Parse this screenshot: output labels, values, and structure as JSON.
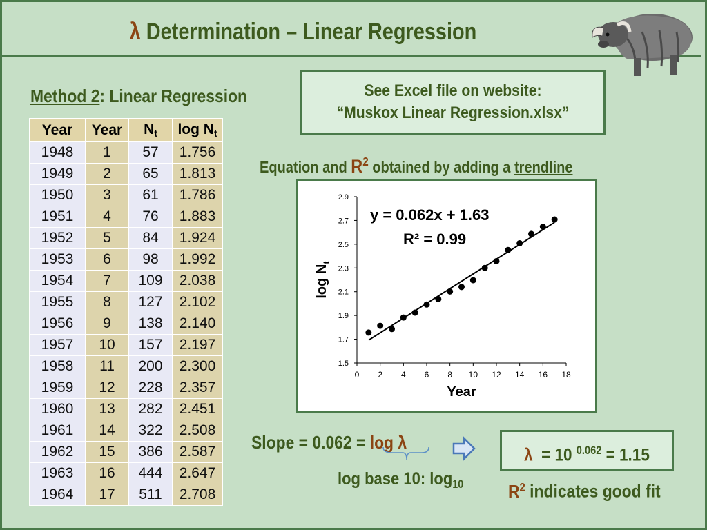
{
  "slide": {
    "title_symbol": "λ",
    "title_text": " Determination – Linear Regression",
    "method_underlined": "Method 2",
    "method_rest": ": Linear Regression",
    "excel_line1": "See Excel file on website:",
    "excel_line2": "“Muskox Linear Regression.xlsx”",
    "eq_note_pre": "Equation and ",
    "eq_note_r": "R",
    "eq_note_r_sup": "2",
    "eq_note_mid": " obtained by adding a ",
    "eq_note_trend": "trendline",
    "slope_text": "Slope = 0.062 = ",
    "slope_loglambda": "log λ",
    "logbase_text": "log base 10: log",
    "logbase_sub": "10",
    "lambda_box_sym": "λ",
    "lambda_box_pre": "  = 10 ",
    "lambda_box_exp": "0.062",
    "lambda_box_post": " = 1.15",
    "goodfit_r": "R",
    "goodfit_sup": "2",
    "goodfit_text": " indicates good fit"
  },
  "table": {
    "headers": [
      {
        "main": "Year",
        "sub": ""
      },
      {
        "main": "Year",
        "sub": ""
      },
      {
        "main": "N",
        "sub": "t"
      },
      {
        "main": "log N",
        "sub": "t"
      }
    ],
    "rows": [
      [
        "1948",
        "1",
        "57",
        "1.756"
      ],
      [
        "1949",
        "2",
        "65",
        "1.813"
      ],
      [
        "1950",
        "3",
        "61",
        "1.786"
      ],
      [
        "1951",
        "4",
        "76",
        "1.883"
      ],
      [
        "1952",
        "5",
        "84",
        "1.924"
      ],
      [
        "1953",
        "6",
        "98",
        "1.992"
      ],
      [
        "1954",
        "7",
        "109",
        "2.038"
      ],
      [
        "1955",
        "8",
        "127",
        "2.102"
      ],
      [
        "1956",
        "9",
        "138",
        "2.140"
      ],
      [
        "1957",
        "10",
        "157",
        "2.197"
      ],
      [
        "1958",
        "11",
        "200",
        "2.300"
      ],
      [
        "1959",
        "12",
        "228",
        "2.357"
      ],
      [
        "1960",
        "13",
        "282",
        "2.451"
      ],
      [
        "1961",
        "14",
        "322",
        "2.508"
      ],
      [
        "1962",
        "15",
        "386",
        "2.587"
      ],
      [
        "1963",
        "16",
        "444",
        "2.647"
      ],
      [
        "1964",
        "17",
        "511",
        "2.708"
      ]
    ]
  },
  "chart_data": {
    "type": "scatter",
    "xlabel": "Year",
    "ylabel": "log N",
    "ylabel_sub": "t",
    "xlim": [
      0,
      18
    ],
    "ylim": [
      1.5,
      2.9
    ],
    "xticks": [
      "0",
      "2",
      "4",
      "6",
      "8",
      "10",
      "12",
      "14",
      "16",
      "18"
    ],
    "yticks": [
      "1.5",
      "1.7",
      "1.9",
      "2.1",
      "2.3",
      "2.5",
      "2.7",
      "2.9"
    ],
    "x": [
      1,
      2,
      3,
      4,
      5,
      6,
      7,
      8,
      9,
      10,
      11,
      12,
      13,
      14,
      15,
      16,
      17
    ],
    "y": [
      1.756,
      1.813,
      1.786,
      1.883,
      1.924,
      1.992,
      2.038,
      2.102,
      2.14,
      2.197,
      2.3,
      2.357,
      2.451,
      2.508,
      2.587,
      2.647,
      2.708
    ],
    "trendline": {
      "slope": 0.062,
      "intercept": 1.63,
      "x_range": [
        1,
        17
      ]
    },
    "equation": "y = 0.062x + 1.63",
    "r_squared": "R² = 0.99",
    "grid": false,
    "legend": "none"
  },
  "colors": {
    "background": "#c6dfc6",
    "border": "#4a7a4a",
    "text_green": "#3d5a1e",
    "accent_brown": "#8b4513"
  }
}
